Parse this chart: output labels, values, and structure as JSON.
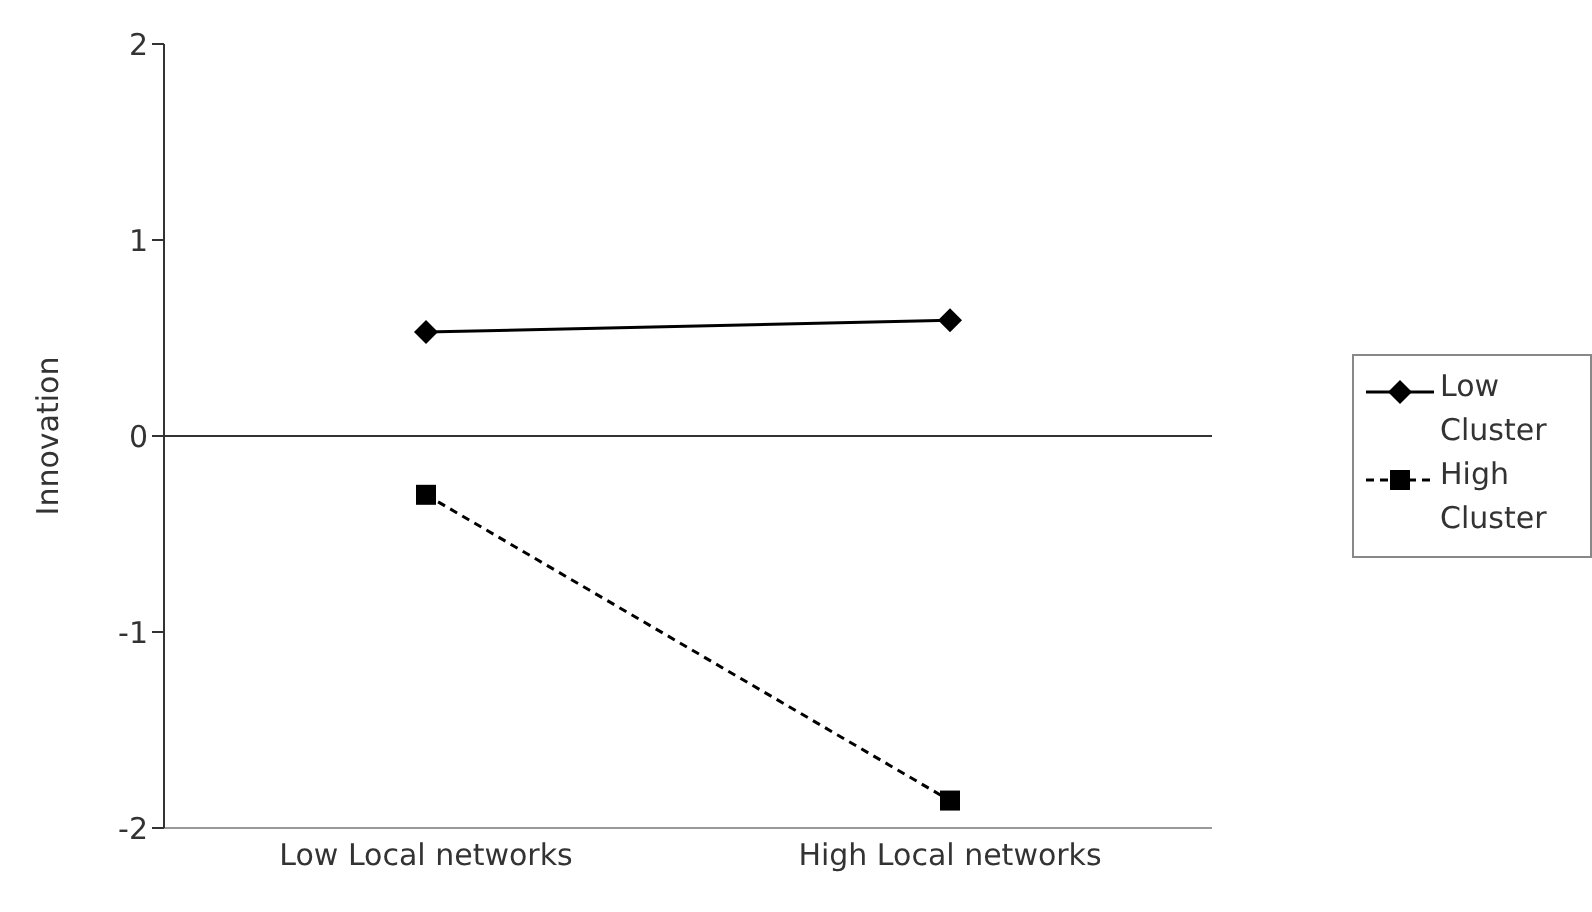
{
  "chart_data": {
    "type": "line",
    "ylabel": "Innovation",
    "categories": [
      "Low Local networks",
      "High Local networks"
    ],
    "series": [
      {
        "name": "Low Cluster",
        "color": "#000000",
        "values": [
          0.53,
          0.59
        ],
        "marker": "diamond",
        "line_style": "solid"
      },
      {
        "name": "High Cluster",
        "color": "#000000",
        "values": [
          -0.3,
          -1.86
        ],
        "marker": "square",
        "line_style": "dashed"
      }
    ],
    "ylim": [
      -2,
      2
    ],
    "yticks": [
      -2,
      -1,
      0,
      1,
      2
    ],
    "ref_lines": [
      {
        "axis": "y",
        "value": 0,
        "color": "#333333"
      }
    ],
    "legend": "right"
  }
}
